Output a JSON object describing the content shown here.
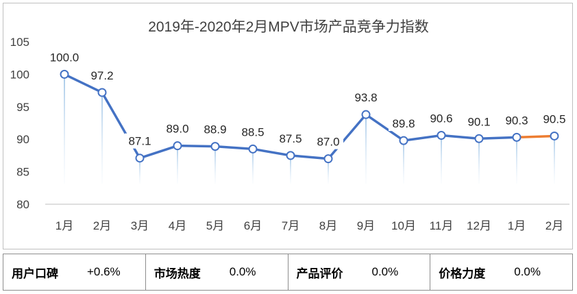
{
  "chart_data": {
    "type": "line",
    "title": "2019年-2020年2月MPV市场产品竞争力指数",
    "categories": [
      "1月",
      "2月",
      "3月",
      "4月",
      "5月",
      "6月",
      "7月",
      "8月",
      "9月",
      "10月",
      "11月",
      "12月",
      "1月",
      "2月"
    ],
    "values": [
      100.0,
      97.2,
      87.1,
      89.0,
      88.9,
      88.5,
      87.5,
      87.0,
      93.8,
      89.8,
      90.6,
      90.1,
      90.3,
      90.5
    ],
    "data_labels": [
      "100.0",
      "97.2",
      "87.1",
      "89.0",
      "88.9",
      "88.5",
      "87.5",
      "87.0",
      "93.8",
      "89.8",
      "90.6",
      "90.1",
      "90.3",
      "90.5"
    ],
    "yticks": [
      "80",
      "85",
      "90",
      "95",
      "100",
      "105"
    ],
    "ylim": [
      80,
      105
    ],
    "grid": false,
    "legend": "none",
    "colors": {
      "line": "#4472c4",
      "last_segment": "#ed7d31",
      "marker_fill": "#ffffff"
    }
  },
  "metrics": [
    {
      "name": "用户口碑",
      "value": "+0.6%"
    },
    {
      "name": "市场热度",
      "value": "0.0%"
    },
    {
      "name": "产品评价",
      "value": "0.0%"
    },
    {
      "name": "价格力度",
      "value": "0.0%"
    }
  ]
}
